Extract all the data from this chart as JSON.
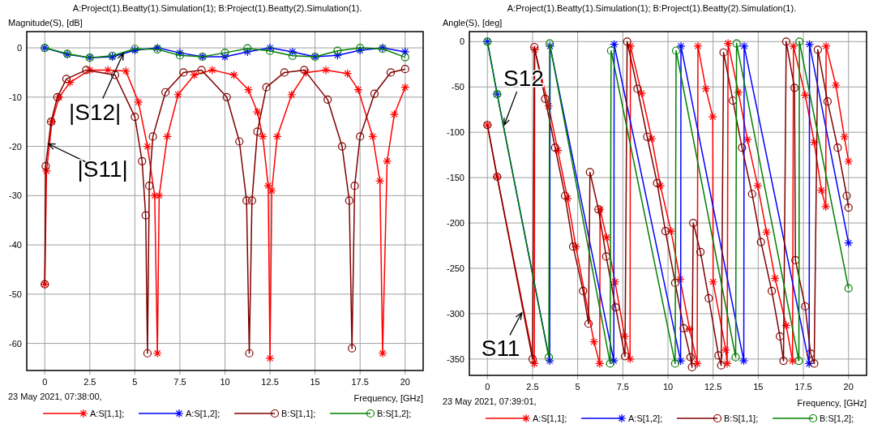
{
  "chart_data": [
    {
      "type": "line",
      "title": "A:Project(1).Beatty(1).Simulation(1); B:Project(1).Beatty(2).Simulation(1).",
      "ylabel": "Magnitude(S), [dB]",
      "xlabel": "Frequency, [GHz]",
      "xlim": [
        -1,
        21
      ],
      "ylim": [
        -65.5,
        3.3
      ],
      "xticks": [
        0,
        2.5,
        5,
        7.5,
        10,
        12.5,
        15,
        17.5,
        20
      ],
      "yticks": [
        0,
        -10,
        -20,
        -30,
        -40,
        -50,
        -60
      ],
      "grid": true,
      "legend": "bottom",
      "annotations": [
        {
          "text": "|S12|",
          "x": 4.36,
          "y": -1.1
        },
        {
          "text": "|S11|",
          "x": 0.2,
          "y": -19.5
        },
        "23 May 2021, 07:38:00,"
      ],
      "series": [
        {
          "name": "A:S[1,1];",
          "color": "#ff0000",
          "marker": "cross",
          "x": [
            0,
            0.1,
            0.4,
            0.8,
            1.4,
            2.5,
            3.5,
            4.5,
            5.2,
            5.7,
            6.1,
            6.25,
            6.35,
            6.8,
            7.4,
            8.3,
            9.3,
            10.5,
            11.3,
            11.8,
            12.1,
            12.4,
            12.5,
            12.6,
            12.9,
            13.7,
            14.5,
            15.6,
            16.8,
            17.4,
            18.2,
            18.6,
            18.75,
            19.0,
            19.4,
            20
          ],
          "values": [
            -48,
            -25,
            -15,
            -10,
            -7,
            -4.5,
            -4.5,
            -4.7,
            -11,
            -20,
            -30,
            -62,
            -30,
            -18,
            -9.5,
            -5.5,
            -4.5,
            -5.5,
            -8.5,
            -13,
            -18,
            -28,
            -63,
            -29,
            -18,
            -9.5,
            -5,
            -4.5,
            -5.2,
            -8.5,
            -18,
            -27,
            -62,
            -23,
            -13.5,
            -8
          ]
        },
        {
          "name": "A:S[1,2];",
          "color": "#0000ff",
          "marker": "cross",
          "x": [
            0,
            1.25,
            2.5,
            3.75,
            5,
            6.25,
            7.5,
            8.75,
            10,
            11.25,
            12.5,
            13.75,
            15,
            16.25,
            17.5,
            18.75,
            20
          ],
          "values": [
            0,
            -1.3,
            -2,
            -1.8,
            -0.5,
            0,
            -1,
            -1.8,
            -1.8,
            -0.8,
            0,
            -0.8,
            -1.8,
            -1.5,
            -0.5,
            0,
            -0.8
          ]
        },
        {
          "name": "B:S[1,1];",
          "color": "#800000",
          "marker": "circle",
          "x": [
            0,
            0.05,
            0.35,
            0.7,
            1.2,
            2.3,
            3.9,
            5.0,
            5.4,
            5.6,
            5.7,
            5.8,
            6.0,
            6.7,
            7.7,
            8.7,
            10.1,
            10.8,
            11.2,
            11.35,
            11.5,
            11.8,
            12.3,
            13.3,
            14.4,
            15.7,
            16.5,
            16.9,
            17.05,
            17.2,
            17.5,
            18.3,
            19.2,
            20
          ],
          "values": [
            -48,
            -24,
            -15,
            -10,
            -6.3,
            -4.5,
            -5.5,
            -14,
            -23,
            -34,
            -62,
            -28,
            -18,
            -9,
            -5,
            -4.5,
            -10,
            -19,
            -31,
            -62,
            -31,
            -17,
            -8,
            -5,
            -4.5,
            -10.5,
            -20,
            -31,
            -61,
            -28,
            -18,
            -9.3,
            -5,
            -4.3
          ]
        },
        {
          "name": "B:S[1,2];",
          "color": "#008000",
          "marker": "circle",
          "x": [
            0,
            1.25,
            2.5,
            3.75,
            5,
            6.25,
            7.5,
            8.75,
            10,
            11.25,
            12.5,
            13.75,
            15,
            16.25,
            17.5,
            18.75,
            20
          ],
          "values": [
            0,
            -1.2,
            -2,
            -1.6,
            -0.2,
            -0.3,
            -1.5,
            -1.8,
            -1,
            -0.1,
            -0.6,
            -1.6,
            -1.8,
            -0.6,
            0,
            -0.2,
            -1.9
          ]
        }
      ]
    },
    {
      "type": "line",
      "title": "A:Project(1).Beatty(1).Simulation(1); B:Project(1).Beatty(2).Simulation(1).",
      "ylabel": "Angle(S), [deg]",
      "xlabel": "Frequency, [GHz]",
      "xlim": [
        -1,
        21
      ],
      "ylim": [
        -368,
        11
      ],
      "xticks": [
        0,
        2.5,
        5,
        7.5,
        10,
        12.5,
        15,
        17.5,
        20
      ],
      "yticks": [
        0,
        -50,
        -100,
        -150,
        -200,
        -250,
        -300,
        -350
      ],
      "grid": true,
      "legend": "bottom",
      "annotations": [
        {
          "text": "S12",
          "x": 0.93,
          "y": -92
        },
        {
          "text": "S11",
          "x": 1.9,
          "y": -299
        },
        "23 May 2021, 07:39:01,"
      ],
      "series": [
        {
          "name": "A:S[1,1];",
          "color": "#ff0000",
          "marker": "cross",
          "x": [
            0,
            0.54,
            2.6,
            2.62,
            3.39,
            3.9,
            4.44,
            4.9,
            5.9,
            6.22,
            6.24,
            6.6,
            7.07,
            7.6,
            7.9,
            7.92,
            8.54,
            9.1,
            9.58,
            10.17,
            10.67,
            11.2,
            11.62,
            11.66,
            12.1,
            12.48,
            12.5,
            13.2,
            13.28,
            13.33,
            13.9,
            14.4,
            14.97,
            15.46,
            15.93,
            16.55,
            16.9,
            16.95,
            17.6,
            18.1,
            18.5,
            18.74,
            18.76,
            19.3,
            19.77,
            20
          ],
          "values": [
            -92,
            -149,
            -355,
            -9,
            -71,
            -120,
            -173,
            -226,
            -331,
            -355,
            -185,
            -216,
            -265,
            -325,
            -350,
            -5,
            -57,
            -107,
            -159,
            -209,
            -262,
            -317,
            -355,
            -5,
            -52,
            -83,
            -265,
            -340,
            -355,
            -2,
            -56,
            -108,
            -159,
            -210,
            -261,
            -313,
            -352,
            -5,
            -59,
            -111,
            -164,
            -182,
            -5,
            -48,
            -105,
            -132
          ]
        },
        {
          "name": "A:S[1,2];",
          "color": "#0000ff",
          "marker": "cross",
          "x": [
            0,
            0.54,
            3.45,
            3.47,
            7.0,
            7.02,
            10.7,
            10.72,
            14.2,
            14.22,
            17.82,
            17.84,
            20
          ],
          "values": [
            0,
            -58,
            -352,
            -5,
            -352,
            -3,
            -352,
            -5,
            -352,
            -5,
            -355,
            -3,
            -222
          ]
        },
        {
          "name": "B:S[1,1];",
          "color": "#800000",
          "marker": "circle",
          "x": [
            0,
            0.54,
            2.5,
            2.6,
            3.2,
            3.75,
            4.3,
            4.75,
            5.3,
            5.6,
            5.68,
            6.15,
            6.58,
            7.1,
            7.62,
            7.74,
            8.31,
            8.85,
            9.4,
            9.86,
            10.4,
            10.87,
            11.25,
            11.33,
            11.4,
            11.8,
            12.26,
            12.8,
            12.95,
            13.08,
            13.6,
            14.1,
            14.66,
            15.15,
            15.75,
            16.2,
            16.4,
            16.55,
            17.01,
            17.06,
            17.6,
            17.9,
            18.1,
            18.3,
            18.84,
            19.4,
            19.9,
            20
          ],
          "values": [
            -92,
            -149,
            -350,
            -6,
            -63,
            -117,
            -170,
            -226,
            -275,
            -311,
            -144,
            -185,
            -237,
            -293,
            -347,
            0,
            -52,
            -105,
            -156,
            -209,
            -266,
            -316,
            -348,
            -359,
            -200,
            -232,
            -283,
            -346,
            -357,
            -12,
            -65,
            -117,
            -168,
            -221,
            -275,
            -325,
            -352,
            0,
            -51,
            -241,
            -292,
            -344,
            -355,
            -9,
            -66,
            -117,
            -170,
            -183
          ]
        },
        {
          "name": "B:S[1,2];",
          "color": "#008000",
          "marker": "circle",
          "x": [
            0,
            0.54,
            3.4,
            3.45,
            6.8,
            6.85,
            10.4,
            10.45,
            13.75,
            13.8,
            17.25,
            17.28,
            20
          ],
          "values": [
            0,
            -58,
            -348,
            -2,
            -355,
            -10,
            -355,
            -10,
            -348,
            -2,
            -352,
            0,
            -272
          ]
        }
      ]
    }
  ]
}
